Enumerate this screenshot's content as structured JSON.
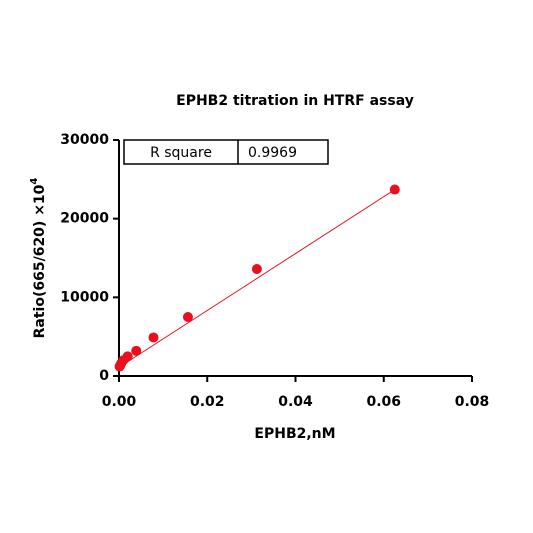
{
  "chart_data": {
    "type": "scatter",
    "title": "EPHB2 titration in HTRF assay",
    "xlabel": "EPHB2,nM",
    "ylabel": "Ratio(665/620) ×10",
    "ylabel_superscript": "4",
    "x": [
      0.0625,
      0.03125,
      0.015625,
      0.0078125,
      0.00390625,
      0.001953125,
      0.0009765625,
      0.00048828125,
      0.000244140625,
      0.0001220703125
    ],
    "series": [
      {
        "color": "#e8101c",
        "values": [
          23700,
          13600,
          7500,
          4900,
          3200,
          2500,
          2000,
          1600,
          1300,
          1200
        ]
      }
    ],
    "fit": {
      "color": "#e8101c",
      "x": [
        0,
        0.0625
      ],
      "y": [
        1100,
        23700
      ]
    },
    "table": {
      "label": "R square",
      "value": "0.9969"
    },
    "xlim": [
      0,
      0.08
    ],
    "xticks": [
      {
        "value": 0,
        "label": "0.00"
      },
      {
        "value": 0.02,
        "label": "0.02"
      },
      {
        "value": 0.04,
        "label": "0.04"
      },
      {
        "value": 0.06,
        "label": "0.06"
      },
      {
        "value": 0.08,
        "label": "0.08"
      }
    ],
    "ylim": [
      0,
      30000
    ],
    "yticks": [
      0,
      10000,
      20000,
      30000
    ]
  }
}
